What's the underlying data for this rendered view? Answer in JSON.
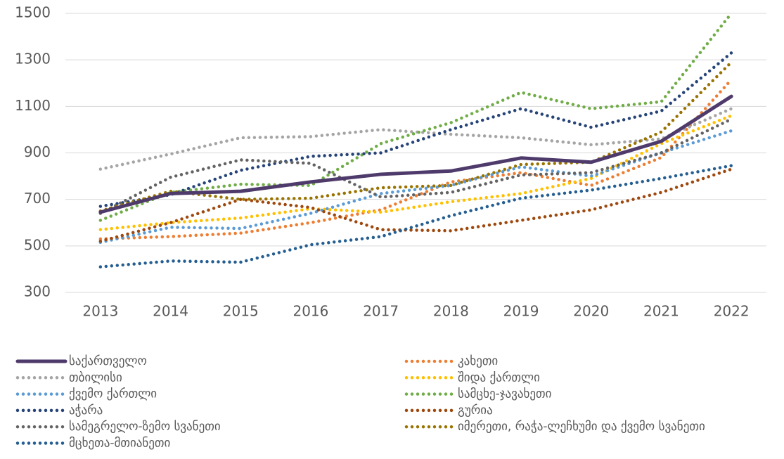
{
  "chart_data": {
    "type": "line",
    "categories": [
      "2013",
      "2014",
      "2015",
      "2016",
      "2017",
      "2018",
      "2019",
      "2020",
      "2021",
      "2022"
    ],
    "ylim": [
      300,
      1500
    ],
    "yticks": [
      300,
      500,
      700,
      900,
      1100,
      1300,
      1500
    ],
    "grid": true,
    "series": [
      {
        "name": "საქართველო",
        "color": "#4f3b6b",
        "style": "solid",
        "values": [
          645,
          725,
          735,
          775,
          808,
          822,
          878,
          860,
          950,
          1143
        ]
      },
      {
        "name": "კახეთი",
        "color": "#ed7d31",
        "style": "dotted",
        "values": [
          530,
          540,
          555,
          600,
          655,
          775,
          815,
          760,
          880,
          1215
        ]
      },
      {
        "name": "თბილისი",
        "color": "#a5a5a5",
        "style": "dotted",
        "values": [
          830,
          895,
          965,
          970,
          1000,
          980,
          965,
          935,
          960,
          1090
        ]
      },
      {
        "name": "შიდა ქართლი",
        "color": "#ffc000",
        "style": "dotted",
        "values": [
          570,
          600,
          620,
          660,
          645,
          690,
          725,
          790,
          940,
          1060
        ]
      },
      {
        "name": "ქვემო ქართლი",
        "color": "#5b9bd5",
        "style": "dotted",
        "values": [
          515,
          580,
          575,
          640,
          725,
          760,
          840,
          800,
          900,
          995
        ]
      },
      {
        "name": "სამცხე-ჯავახეთი",
        "color": "#70ad47",
        "style": "dotted",
        "values": [
          610,
          730,
          765,
          760,
          940,
          1030,
          1160,
          1090,
          1120,
          1500
        ]
      },
      {
        "name": "აჭარა",
        "color": "#264478",
        "style": "dotted",
        "values": [
          670,
          720,
          825,
          885,
          900,
          1000,
          1090,
          1010,
          1080,
          1330
        ]
      },
      {
        "name": "გურია",
        "color": "#9e480e",
        "style": "dotted",
        "values": [
          520,
          600,
          700,
          665,
          570,
          565,
          610,
          655,
          730,
          830
        ]
      },
      {
        "name": "სამეგრელო-ზემო სვანეთი",
        "color": "#636363",
        "style": "dotted",
        "values": [
          640,
          795,
          870,
          855,
          710,
          730,
          805,
          815,
          900,
          1045
        ]
      },
      {
        "name": "იმერეთი, რაჭა-ლეჩხუმი და ქვემო სვანეთი",
        "color": "#997300",
        "style": "dotted",
        "values": [
          650,
          735,
          700,
          705,
          750,
          760,
          850,
          860,
          990,
          1290
        ]
      },
      {
        "name": "მცხეთა-მთიანეთი",
        "color": "#255e91",
        "style": "dotted",
        "values": [
          410,
          435,
          430,
          505,
          540,
          630,
          705,
          740,
          790,
          845
        ]
      }
    ]
  }
}
